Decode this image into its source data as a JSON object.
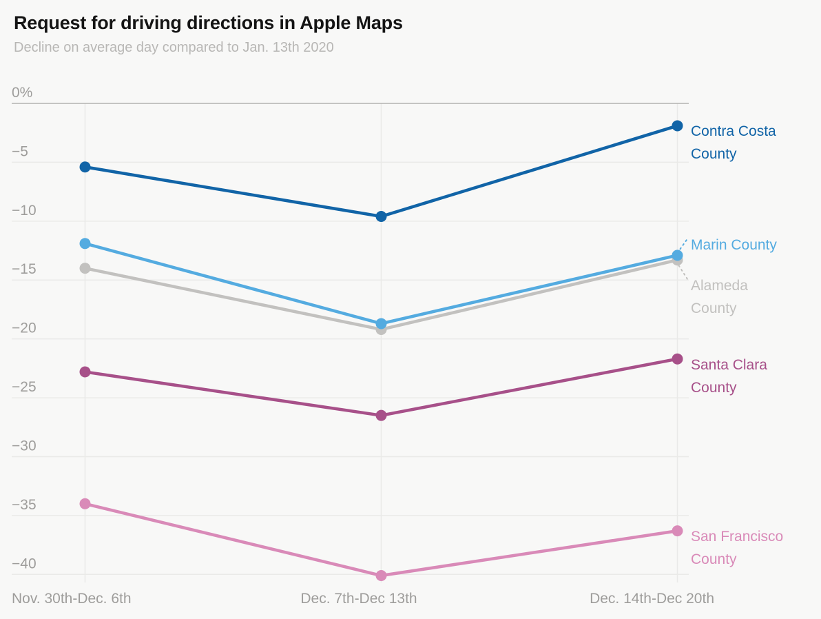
{
  "header": {
    "title": "Request for driving directions in Apple Maps",
    "subtitle": "Decline on average day compared to Jan. 13th 2020"
  },
  "chart_data": {
    "type": "line",
    "categories": [
      "Nov. 30th-Dec. 6th",
      "Dec. 7th-Dec 13th",
      "Dec. 14th-Dec 20th"
    ],
    "series": [
      {
        "name": "Contra Costa County",
        "label_lines": [
          "Contra Costa",
          "County"
        ],
        "color": "#1164a7",
        "values": [
          -5.4,
          -9.6,
          -1.9
        ],
        "label_dy": -8
      },
      {
        "name": "Marin County",
        "label_lines": [
          "Marin County"
        ],
        "color": "#54abe0",
        "values": [
          -11.9,
          -18.7,
          -12.9
        ],
        "label_dy": -31,
        "leader": "up"
      },
      {
        "name": "Alameda County",
        "label_lines": [
          "Alameda",
          "County"
        ],
        "color": "#c2c1bf",
        "values": [
          -14.0,
          -19.2,
          -13.3
        ],
        "label_dy": 21,
        "leader": "down"
      },
      {
        "name": "Santa Clara County",
        "label_lines": [
          "Santa Clara",
          "County"
        ],
        "color": "#a75089",
        "values": [
          -22.8,
          -26.5,
          -21.7
        ],
        "label_dy": -8
      },
      {
        "name": "San Francisco County",
        "label_lines": [
          "San Francisco",
          "County"
        ],
        "color": "#d98ab8",
        "values": [
          -34.0,
          -40.1,
          -36.3
        ],
        "label_dy": -8
      }
    ],
    "y_ticks": [
      {
        "value": 0,
        "label": "0%"
      },
      {
        "value": -5,
        "label": "−5"
      },
      {
        "value": -10,
        "label": "−10"
      },
      {
        "value": -15,
        "label": "−15"
      },
      {
        "value": -20,
        "label": "−20"
      },
      {
        "value": -25,
        "label": "−25"
      },
      {
        "value": -30,
        "label": "−30"
      },
      {
        "value": -35,
        "label": "−35"
      },
      {
        "value": -40,
        "label": "−40"
      }
    ],
    "ylim": [
      0,
      -40
    ],
    "grid": true,
    "legend_position": "right-annotations",
    "colors": {
      "background": "#f8f8f7",
      "gridline": "#eaeae8",
      "zero_line": "#b3b2b0",
      "tick_text": "#9e9d9b",
      "title_text": "#141414",
      "subtitle_text": "#b8b7b5"
    }
  }
}
